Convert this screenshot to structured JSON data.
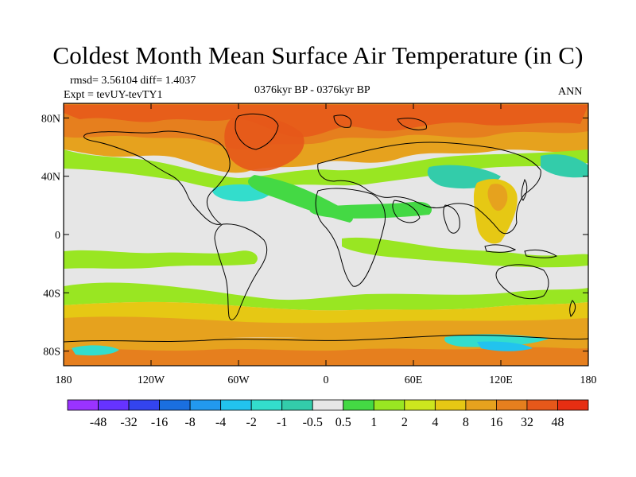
{
  "title": "Coldest Month Mean Surface Air Temperature (in C)",
  "stats": {
    "rmsd": "rmsd= 3.56104 diff= 1.4037",
    "expt": "Expt = tevUY-tevTY1"
  },
  "period": "0376kyr BP - 0376kyr BP",
  "season": "ANN",
  "axes": {
    "y_ticks": [
      {
        "label": "80N",
        "lat": 80
      },
      {
        "label": "40N",
        "lat": 40
      },
      {
        "label": "0",
        "lat": 0
      },
      {
        "label": "40S",
        "lat": -40
      },
      {
        "label": "80S",
        "lat": -80
      }
    ],
    "x_ticks": [
      {
        "label": "180",
        "lon": -180
      },
      {
        "label": "120W",
        "lon": -120
      },
      {
        "label": "60W",
        "lon": -60
      },
      {
        "label": "0",
        "lon": 0
      },
      {
        "label": "60E",
        "lon": 60
      },
      {
        "label": "120E",
        "lon": 120
      },
      {
        "label": "180",
        "lon": 180
      }
    ]
  },
  "colorbar": {
    "colors": [
      "#9a33ff",
      "#6633ff",
      "#3344ee",
      "#1a6fe0",
      "#2299ee",
      "#22c3ee",
      "#33ddcc",
      "#33ccaa",
      "#e6e6e6",
      "#44d944",
      "#99e622",
      "#cde61e",
      "#e6c814",
      "#e6a21e",
      "#e67f1e",
      "#e6581a",
      "#e62e12"
    ],
    "labels": [
      "-48",
      "-32",
      "-16",
      "-8",
      "-4",
      "-2",
      "-1",
      "-0.5",
      "0.5",
      "1",
      "2",
      "4",
      "8",
      "16",
      "32",
      "48"
    ]
  }
}
